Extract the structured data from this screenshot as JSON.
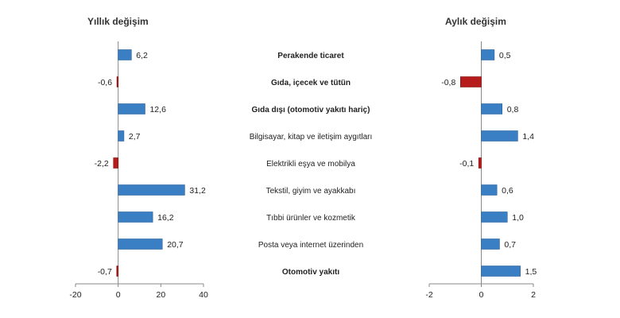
{
  "chart_data": [
    {
      "type": "bar",
      "orientation": "horizontal",
      "title": "Yıllık değişim",
      "categories": [
        "Perakende ticaret",
        "Gıda, içecek ve tütün",
        "Gıda dışı (otomotiv yakıtı hariç)",
        "Bilgisayar, kitap ve iletişim aygıtları",
        "Elektrikli eşya ve mobilya",
        "Tekstil, giyim ve ayakkabı",
        "Tıbbi ürünler ve kozmetik",
        "Posta veya internet üzerinden",
        "Otomotiv yakıtı"
      ],
      "values": [
        6.2,
        -0.6,
        12.6,
        2.7,
        -2.2,
        31.2,
        16.2,
        20.7,
        -0.7
      ],
      "value_labels": [
        "6,2",
        "-0,6",
        "12,6",
        "2,7",
        "-2,2",
        "31,2",
        "16,2",
        "20,7",
        "-0,7"
      ],
      "xlim": [
        -20,
        40
      ],
      "xticks": [
        -20,
        0,
        20,
        40
      ],
      "xtick_labels": [
        "-20",
        "0",
        "20",
        "40"
      ],
      "colors": {
        "positive": "#3a7fc4",
        "negative": "#b71c1c"
      }
    },
    {
      "type": "bar",
      "orientation": "horizontal",
      "title": "Aylık değişim",
      "categories": [
        "Perakende ticaret",
        "Gıda, içecek ve tütün",
        "Gıda dışı (otomotiv yakıtı hariç)",
        "Bilgisayar, kitap ve iletişim aygıtları",
        "Elektrikli eşya ve mobilya",
        "Tekstil, giyim ve ayakkabı",
        "Tıbbi ürünler ve kozmetik",
        "Posta veya internet üzerinden",
        "Otomotiv yakıtı"
      ],
      "values": [
        0.5,
        -0.8,
        0.8,
        1.4,
        -0.1,
        0.6,
        1.0,
        0.7,
        1.5
      ],
      "value_labels": [
        "0,5",
        "-0,8",
        "0,8",
        "1,4",
        "-0,1",
        "0,6",
        "1,0",
        "0,7",
        "1,5"
      ],
      "xlim": [
        -2,
        2
      ],
      "xticks": [
        -2,
        0,
        2
      ],
      "xtick_labels": [
        "-2",
        "0",
        "2"
      ],
      "colors": {
        "positive": "#3a7fc4",
        "negative": "#b71c1c"
      }
    }
  ],
  "bold_categories": [
    0,
    1,
    2,
    8
  ]
}
